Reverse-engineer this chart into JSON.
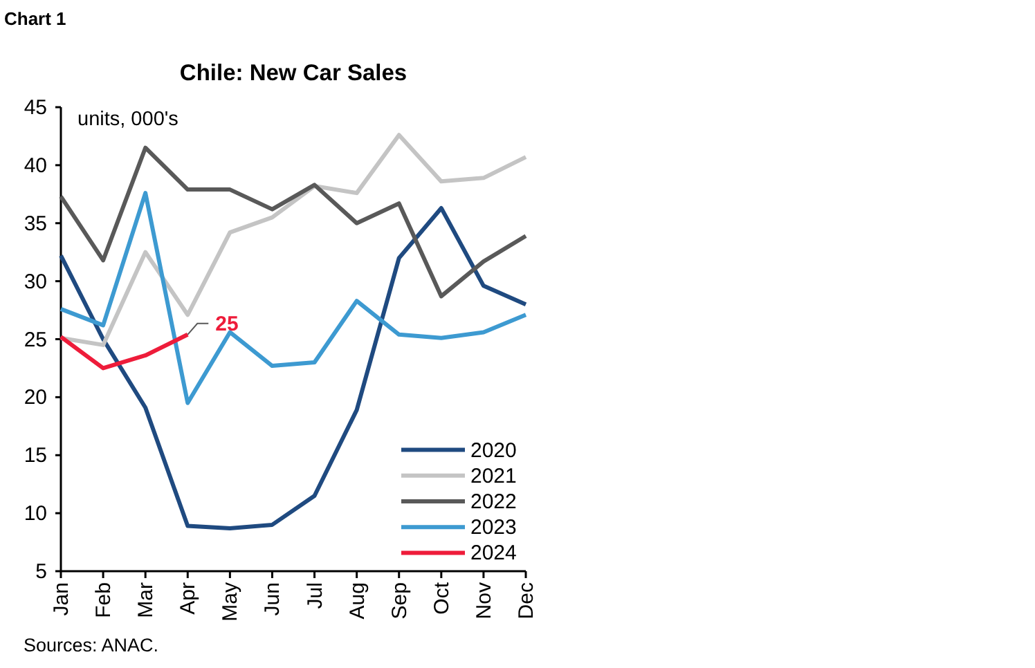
{
  "chart_data": {
    "type": "line",
    "title": "Chile: New Car Sales",
    "ylabel": "units, 000's",
    "annotations": [
      "Chart 1",
      "Sources: ANAC."
    ],
    "categories": [
      "Jan",
      "Feb",
      "Mar",
      "Apr",
      "May",
      "Jun",
      "Jul",
      "Aug",
      "Sep",
      "Oct",
      "Nov",
      "Dec"
    ],
    "series": [
      {
        "name": "2020",
        "color": "#1f4a80",
        "values": [
          32.2,
          25,
          19.1,
          8.9,
          8.7,
          9,
          11.5,
          18.9,
          32,
          36.3,
          29.6,
          28
        ]
      },
      {
        "name": "2021",
        "color": "#c4c4c4",
        "values": [
          25.1,
          24.5,
          32.5,
          27.1,
          34.2,
          35.5,
          38.2,
          37.6,
          42.6,
          38.6,
          38.9,
          40.7
        ]
      },
      {
        "name": "2022",
        "color": "#595959",
        "values": [
          37.3,
          31.8,
          41.5,
          37.9,
          37.9,
          36.2,
          38.3,
          35,
          36.7,
          28.7,
          31.7,
          33.9
        ]
      },
      {
        "name": "2023",
        "color": "#3d9ad1",
        "values": [
          27.6,
          26.2,
          37.6,
          19.5,
          25.6,
          22.7,
          23,
          28.3,
          25.4,
          25.1,
          25.6,
          27.1
        ]
      },
      {
        "name": "2024",
        "color": "#ee1c3a",
        "values": [
          25.2,
          22.5,
          23.6,
          25.4,
          null,
          null,
          null,
          null,
          null,
          null,
          null,
          null
        ],
        "value_labels": [
          null,
          null,
          null,
          "25",
          null,
          null,
          null,
          null,
          null,
          null,
          null,
          null
        ]
      }
    ],
    "ylim": [
      5,
      45
    ],
    "yticks": [
      5,
      10,
      15,
      20,
      25,
      30,
      35,
      40,
      45
    ],
    "legend": "bottom right"
  }
}
